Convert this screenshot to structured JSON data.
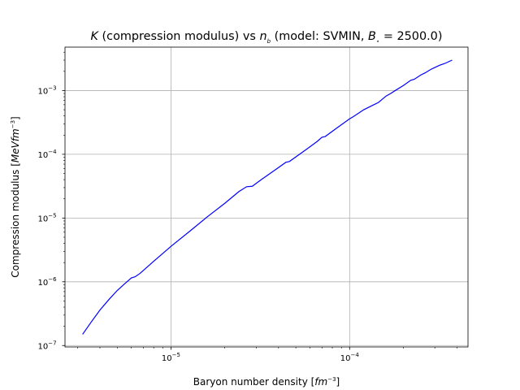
{
  "chart_data": {
    "type": "line",
    "title": {
      "var": "K",
      "desc": " (compression modulus) vs ",
      "nvar": "n",
      "nsub": "b",
      "model": " (model: SVMIN, ",
      "bvar": "B",
      "bsub": "⋆",
      "bval": " = 2500.0)"
    },
    "xlabel": {
      "text": "Baryon number density [",
      "unit": "fm",
      "exp": "−3",
      "close": "]"
    },
    "ylabel": {
      "text": "Compression modulus [",
      "unit": "MeVfm",
      "exp": "−3",
      "close": "]"
    },
    "xscale": "log",
    "yscale": "log",
    "xlim": [
      2.55e-06,
      0.00046
    ],
    "ylim": [
      9.5e-08,
      0.0048
    ],
    "xticks": [
      {
        "exp": -5,
        "label": "−5"
      },
      {
        "exp": -4,
        "label": "−4"
      }
    ],
    "yticks": [
      {
        "exp": -7,
        "label": "−7"
      },
      {
        "exp": -6,
        "label": "−6"
      },
      {
        "exp": -5,
        "label": "−5"
      },
      {
        "exp": -4,
        "label": "−4"
      },
      {
        "exp": -3,
        "label": "−3"
      }
    ],
    "grid": true,
    "line_color": "#0000ff",
    "series": [
      {
        "x": [
          3.2e-06,
          3.6e-06,
          4e-06,
          4.5e-06,
          5e-06,
          5.5e-06,
          6e-06,
          6.3e-06,
          6.7e-06,
          8e-06,
          1e-05,
          1.3e-05,
          1.6e-05,
          2e-05,
          2.4e-05,
          2.65e-05,
          2.85e-05,
          3.2e-05,
          3.8e-05,
          4.4e-05,
          4.6e-05,
          5.5e-05,
          6.6e-05,
          7e-05,
          7.3e-05,
          8.5e-05,
          0.0001,
          0.000105,
          0.00012,
          0.000135,
          0.000145,
          0.00016,
          0.00017,
          0.00018,
          0.0002,
          0.00022,
          0.00023,
          0.00025,
          0.000265,
          0.000285,
          0.0003,
          0.00032,
          0.00034,
          0.00036,
          0.000375
        ],
        "y": [
          1.5e-07,
          2.4e-07,
          3.6e-07,
          5.3e-07,
          7.3e-07,
          9.3e-07,
          1.15e-06,
          1.2e-06,
          1.35e-06,
          2.1e-06,
          3.6e-06,
          6.5e-06,
          1.05e-05,
          1.7e-05,
          2.6e-05,
          3.1e-05,
          3.15e-05,
          4e-05,
          5.6e-05,
          7.5e-05,
          7.7e-05,
          0.00011,
          0.00016,
          0.000185,
          0.00019,
          0.00026,
          0.00036,
          0.00039,
          0.0005,
          0.00059,
          0.00065,
          0.00082,
          0.0009,
          0.001,
          0.0012,
          0.00145,
          0.0015,
          0.00175,
          0.0019,
          0.00215,
          0.0023,
          0.0025,
          0.00265,
          0.00285,
          0.003
        ]
      }
    ]
  }
}
